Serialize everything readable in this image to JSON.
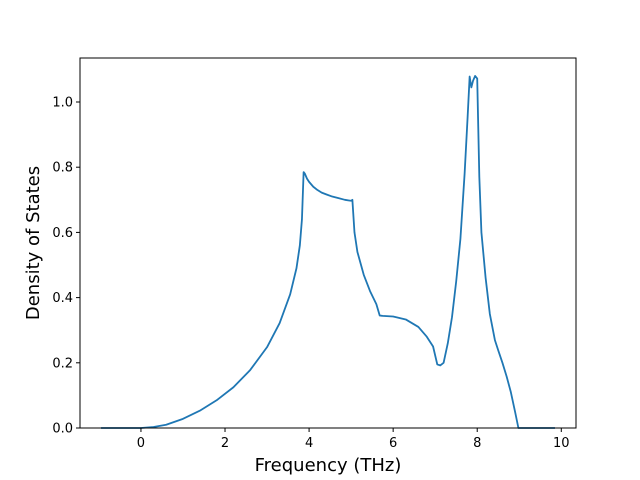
{
  "chart_data": {
    "type": "line",
    "xlabel": "Frequency (THz)",
    "ylabel": "Density of States",
    "xlim": [
      -1.45,
      10.35
    ],
    "ylim": [
      0.0,
      1.135
    ],
    "xticks": [
      0,
      2,
      4,
      6,
      8,
      10
    ],
    "yticks": [
      0.0,
      0.2,
      0.4,
      0.6,
      0.8,
      1.0
    ],
    "xtick_labels": [
      "0",
      "2",
      "4",
      "6",
      "8",
      "10"
    ],
    "ytick_labels": [
      "0.0",
      "0.2",
      "0.4",
      "0.6",
      "0.8",
      "1.0"
    ],
    "grid": false,
    "line_color": "#1f77b4",
    "series": [
      {
        "x": [
          -0.95,
          0.0,
          0.3,
          0.6,
          1.0,
          1.4,
          1.8,
          2.2,
          2.6,
          3.0,
          3.3,
          3.55,
          3.7,
          3.78,
          3.83,
          3.87,
          3.9,
          3.95,
          4.0,
          4.1,
          4.2,
          4.3,
          4.4,
          4.55,
          4.7,
          4.85,
          4.95,
          5.0,
          5.03,
          5.08,
          5.15,
          5.3,
          5.45,
          5.6,
          5.68,
          5.75,
          6.0,
          6.3,
          6.6,
          6.8,
          6.95,
          7.05,
          7.12,
          7.2,
          7.3,
          7.4,
          7.5,
          7.6,
          7.7,
          7.77,
          7.82,
          7.86,
          7.9,
          7.95,
          8.0,
          8.02,
          8.05,
          8.1,
          8.2,
          8.3,
          8.42,
          8.5,
          8.6,
          8.7,
          8.8,
          8.9,
          8.98,
          9.05,
          9.3,
          9.85
        ],
        "y": [
          0.0,
          0.0,
          0.003,
          0.01,
          0.028,
          0.053,
          0.085,
          0.125,
          0.178,
          0.248,
          0.322,
          0.41,
          0.49,
          0.56,
          0.64,
          0.785,
          0.78,
          0.765,
          0.755,
          0.74,
          0.73,
          0.722,
          0.717,
          0.71,
          0.705,
          0.7,
          0.698,
          0.697,
          0.7,
          0.6,
          0.54,
          0.47,
          0.42,
          0.38,
          0.345,
          0.344,
          0.342,
          0.333,
          0.31,
          0.28,
          0.25,
          0.195,
          0.192,
          0.2,
          0.26,
          0.34,
          0.45,
          0.58,
          0.78,
          0.95,
          1.078,
          1.045,
          1.065,
          1.08,
          1.072,
          0.95,
          0.77,
          0.6,
          0.46,
          0.35,
          0.27,
          0.238,
          0.2,
          0.158,
          0.11,
          0.05,
          0.0,
          0.0,
          0.0,
          0.0
        ]
      }
    ]
  }
}
